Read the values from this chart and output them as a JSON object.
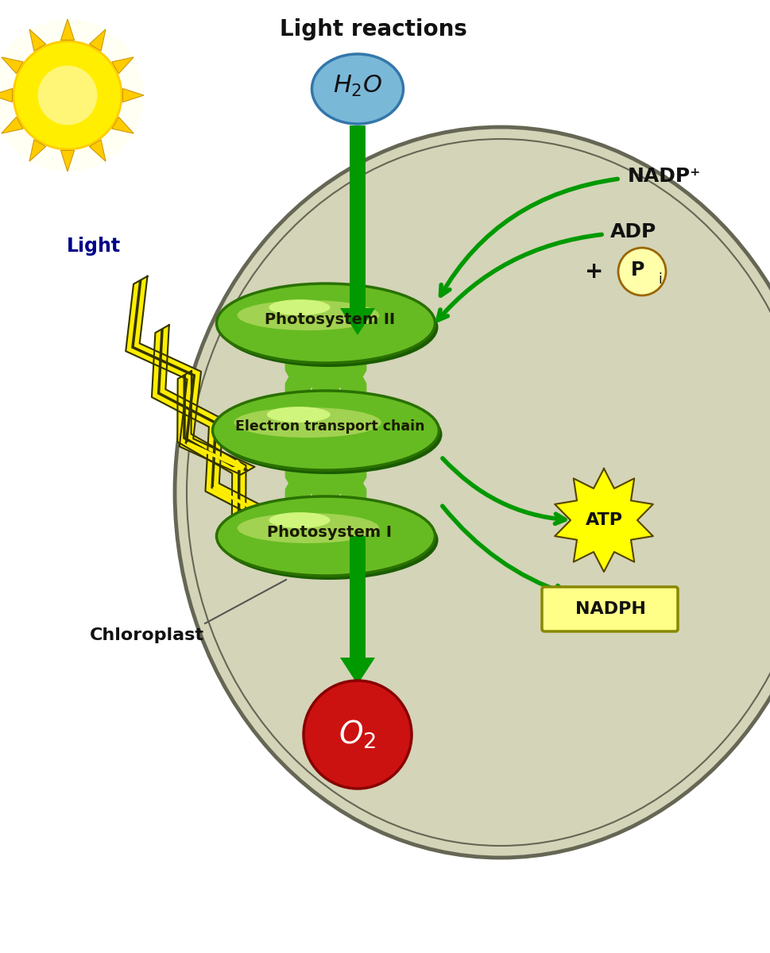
{
  "title": "Light reactions",
  "bg_color": "#ffffff",
  "chloroplast_fill": "#d4d4b8",
  "chloroplast_border": "#666655",
  "green_main": "#66bb22",
  "green_light": "#bbdd66",
  "green_dark": "#2a7000",
  "green_highlight": "#ddff88",
  "arrow_green": "#009900",
  "sun_yellow": "#ffee00",
  "sun_orange": "#ffcc00",
  "sun_white": "#ffffc0",
  "h2o_fill": "#7ab8d8",
  "h2o_border": "#3377aa",
  "o2_fill": "#cc1111",
  "o2_border": "#880000",
  "nadp_text": "NADP⁺",
  "adp_text": "ADP",
  "pi_text": "P",
  "pi_sub": "i",
  "atp_text": "ATP",
  "nadph_text": "NADPH",
  "light_text": "Light",
  "chloroplast_label": "Chloroplast",
  "ps2_text": "Photosystem II",
  "etc_text": "Electron transport chain",
  "ps1_text": "Photosystem I",
  "title_fontsize": 20,
  "label_fontsize": 15,
  "small_fontsize": 13
}
